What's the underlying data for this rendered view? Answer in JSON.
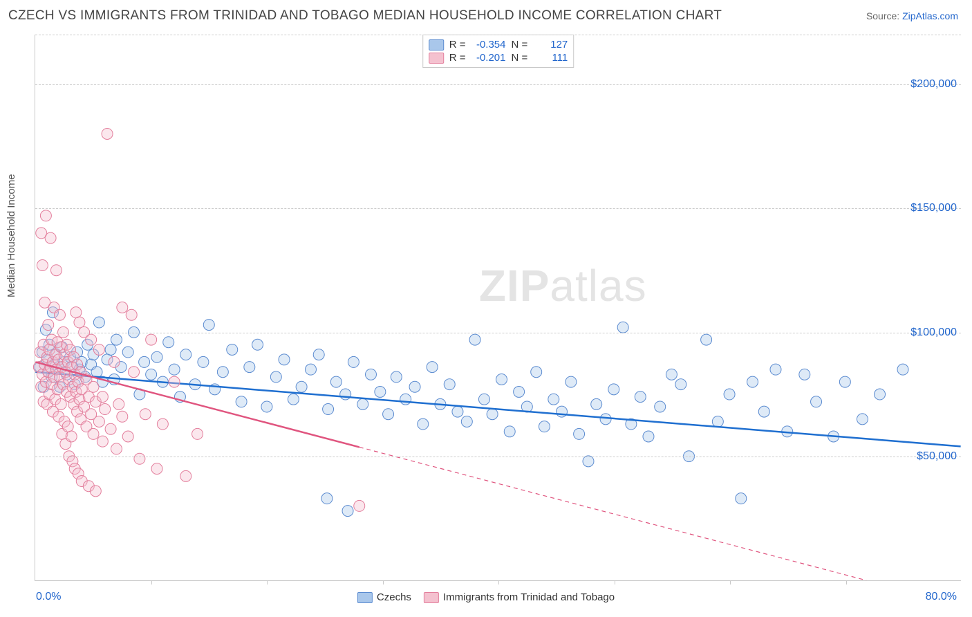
{
  "title": "CZECH VS IMMIGRANTS FROM TRINIDAD AND TOBAGO MEDIAN HOUSEHOLD INCOME CORRELATION CHART",
  "source_prefix": "Source: ",
  "source_link": "ZipAtlas.com",
  "y_axis_label": "Median Household Income",
  "watermark_a": "ZIP",
  "watermark_b": "atlas",
  "chart": {
    "type": "scatter",
    "background_color": "#ffffff",
    "grid_color": "#cccccc",
    "border_color": "#c8c8c8",
    "xlim": [
      0,
      80
    ],
    "ylim": [
      0,
      220000
    ],
    "x_ticks_minor": [
      10,
      20,
      30,
      40,
      50,
      60,
      70
    ],
    "x_tick_labels": {
      "min": "0.0%",
      "max": "80.0%"
    },
    "y_ticks": [
      50000,
      100000,
      150000,
      200000
    ],
    "y_tick_labels": [
      "$50,000",
      "$100,000",
      "$150,000",
      "$200,000"
    ],
    "y_tick_color": "#2266cc",
    "x_tick_color": "#2266cc",
    "marker_radius": 8,
    "marker_opacity": 0.38,
    "trend_line_width": 2.5,
    "series": [
      {
        "name": "Czechs",
        "color_fill": "#a9c7eb",
        "color_stroke": "#5b8bd0",
        "line_color": "#1f6fd0",
        "R": "-0.354",
        "N": "127",
        "trend_y_at_xmin": 84000,
        "trend_y_at_xmax": 54000,
        "trend_x_range": [
          0,
          80
        ],
        "points": [
          [
            0.4,
            86000
          ],
          [
            0.6,
            92000
          ],
          [
            0.7,
            78000
          ],
          [
            0.9,
            101000
          ],
          [
            1.0,
            89000
          ],
          [
            1.1,
            84000
          ],
          [
            1.2,
            95000
          ],
          [
            1.4,
            82000
          ],
          [
            1.5,
            108000
          ],
          [
            1.6,
            87000
          ],
          [
            1.8,
            91000
          ],
          [
            2.0,
            86000
          ],
          [
            2.1,
            78000
          ],
          [
            2.3,
            94000
          ],
          [
            2.5,
            88000
          ],
          [
            2.7,
            83000
          ],
          [
            3.0,
            90000
          ],
          [
            3.2,
            86000
          ],
          [
            3.4,
            79000
          ],
          [
            3.6,
            92000
          ],
          [
            3.8,
            85000
          ],
          [
            4.0,
            88000
          ],
          [
            4.3,
            82000
          ],
          [
            4.5,
            95000
          ],
          [
            4.8,
            87000
          ],
          [
            5.0,
            91000
          ],
          [
            5.3,
            84000
          ],
          [
            5.5,
            104000
          ],
          [
            5.8,
            80000
          ],
          [
            6.2,
            89000
          ],
          [
            6.5,
            93000
          ],
          [
            6.8,
            81000
          ],
          [
            7.0,
            97000
          ],
          [
            7.4,
            86000
          ],
          [
            8.0,
            92000
          ],
          [
            8.5,
            100000
          ],
          [
            9.0,
            75000
          ],
          [
            9.4,
            88000
          ],
          [
            10.0,
            83000
          ],
          [
            10.5,
            90000
          ],
          [
            11.0,
            80000
          ],
          [
            11.5,
            96000
          ],
          [
            12.0,
            85000
          ],
          [
            12.5,
            74000
          ],
          [
            13.0,
            91000
          ],
          [
            13.8,
            79000
          ],
          [
            14.5,
            88000
          ],
          [
            15.0,
            103000
          ],
          [
            15.5,
            77000
          ],
          [
            16.2,
            84000
          ],
          [
            17.0,
            93000
          ],
          [
            17.8,
            72000
          ],
          [
            18.5,
            86000
          ],
          [
            19.2,
            95000
          ],
          [
            20.0,
            70000
          ],
          [
            20.8,
            82000
          ],
          [
            21.5,
            89000
          ],
          [
            22.3,
            73000
          ],
          [
            23.0,
            78000
          ],
          [
            23.8,
            85000
          ],
          [
            24.5,
            91000
          ],
          [
            25.2,
            33000
          ],
          [
            25.3,
            69000
          ],
          [
            26.0,
            80000
          ],
          [
            26.8,
            75000
          ],
          [
            27.0,
            28000
          ],
          [
            27.5,
            88000
          ],
          [
            28.3,
            71000
          ],
          [
            29.0,
            83000
          ],
          [
            29.8,
            76000
          ],
          [
            30.5,
            67000
          ],
          [
            31.2,
            82000
          ],
          [
            32.0,
            73000
          ],
          [
            32.8,
            78000
          ],
          [
            33.5,
            63000
          ],
          [
            34.3,
            86000
          ],
          [
            35.0,
            71000
          ],
          [
            35.8,
            79000
          ],
          [
            36.5,
            68000
          ],
          [
            37.3,
            64000
          ],
          [
            38.0,
            97000
          ],
          [
            38.8,
            73000
          ],
          [
            39.5,
            67000
          ],
          [
            40.3,
            81000
          ],
          [
            41.0,
            60000
          ],
          [
            41.8,
            76000
          ],
          [
            42.5,
            70000
          ],
          [
            43.3,
            84000
          ],
          [
            44.0,
            62000
          ],
          [
            44.8,
            73000
          ],
          [
            45.5,
            68000
          ],
          [
            46.3,
            80000
          ],
          [
            47.0,
            59000
          ],
          [
            47.8,
            48000
          ],
          [
            48.5,
            71000
          ],
          [
            49.3,
            65000
          ],
          [
            50.0,
            77000
          ],
          [
            50.8,
            102000
          ],
          [
            51.5,
            63000
          ],
          [
            52.3,
            74000
          ],
          [
            53.0,
            58000
          ],
          [
            54.0,
            70000
          ],
          [
            55.0,
            83000
          ],
          [
            55.8,
            79000
          ],
          [
            56.5,
            50000
          ],
          [
            58.0,
            97000
          ],
          [
            59.0,
            64000
          ],
          [
            60.0,
            75000
          ],
          [
            61.0,
            33000
          ],
          [
            62.0,
            80000
          ],
          [
            63.0,
            68000
          ],
          [
            64.0,
            85000
          ],
          [
            65.0,
            60000
          ],
          [
            66.5,
            83000
          ],
          [
            67.5,
            72000
          ],
          [
            69.0,
            58000
          ],
          [
            70.0,
            80000
          ],
          [
            71.5,
            65000
          ],
          [
            73.0,
            75000
          ],
          [
            75.0,
            85000
          ]
        ]
      },
      {
        "name": "Immigrants from Trinidad and Tobago",
        "color_fill": "#f4c1cf",
        "color_stroke": "#e37e9c",
        "line_color": "#e0557f",
        "R": "-0.201",
        "N": "111",
        "trend_y_at_xmin": 88000,
        "trend_y_at_xmax": -10000,
        "trend_x_range": [
          0,
          28
        ],
        "points": [
          [
            0.3,
            86000
          ],
          [
            0.4,
            92000
          ],
          [
            0.5,
            78000
          ],
          [
            0.5,
            140000
          ],
          [
            0.6,
            83000
          ],
          [
            0.6,
            127000
          ],
          [
            0.7,
            95000
          ],
          [
            0.7,
            72000
          ],
          [
            0.8,
            112000
          ],
          [
            0.8,
            87000
          ],
          [
            0.9,
            80000
          ],
          [
            0.9,
            147000
          ],
          [
            1.0,
            90000
          ],
          [
            1.0,
            71000
          ],
          [
            1.1,
            84000
          ],
          [
            1.1,
            103000
          ],
          [
            1.2,
            93000
          ],
          [
            1.2,
            75000
          ],
          [
            1.3,
            86000
          ],
          [
            1.3,
            138000
          ],
          [
            1.4,
            79000
          ],
          [
            1.4,
            97000
          ],
          [
            1.5,
            88000
          ],
          [
            1.5,
            68000
          ],
          [
            1.6,
            82000
          ],
          [
            1.6,
            110000
          ],
          [
            1.7,
            91000
          ],
          [
            1.7,
            73000
          ],
          [
            1.8,
            85000
          ],
          [
            1.8,
            125000
          ],
          [
            1.9,
            77000
          ],
          [
            1.9,
            96000
          ],
          [
            2.0,
            89000
          ],
          [
            2.0,
            66000
          ],
          [
            2.1,
            82000
          ],
          [
            2.1,
            107000
          ],
          [
            2.2,
            94000
          ],
          [
            2.2,
            71000
          ],
          [
            2.3,
            86000
          ],
          [
            2.3,
            59000
          ],
          [
            2.4,
            79000
          ],
          [
            2.4,
            100000
          ],
          [
            2.5,
            91000
          ],
          [
            2.5,
            64000
          ],
          [
            2.6,
            84000
          ],
          [
            2.6,
            55000
          ],
          [
            2.7,
            76000
          ],
          [
            2.7,
            95000
          ],
          [
            2.8,
            88000
          ],
          [
            2.8,
            62000
          ],
          [
            2.9,
            81000
          ],
          [
            2.9,
            50000
          ],
          [
            3.0,
            74000
          ],
          [
            3.0,
            93000
          ],
          [
            3.1,
            86000
          ],
          [
            3.1,
            58000
          ],
          [
            3.2,
            78000
          ],
          [
            3.2,
            48000
          ],
          [
            3.3,
            71000
          ],
          [
            3.3,
            90000
          ],
          [
            3.4,
            83000
          ],
          [
            3.4,
            45000
          ],
          [
            3.5,
            76000
          ],
          [
            3.5,
            108000
          ],
          [
            3.6,
            68000
          ],
          [
            3.6,
            87000
          ],
          [
            3.7,
            80000
          ],
          [
            3.7,
            43000
          ],
          [
            3.8,
            73000
          ],
          [
            3.8,
            104000
          ],
          [
            3.9,
            65000
          ],
          [
            3.9,
            84000
          ],
          [
            4.0,
            77000
          ],
          [
            4.0,
            40000
          ],
          [
            4.2,
            70000
          ],
          [
            4.2,
            100000
          ],
          [
            4.4,
            62000
          ],
          [
            4.4,
            81000
          ],
          [
            4.6,
            74000
          ],
          [
            4.6,
            38000
          ],
          [
            4.8,
            67000
          ],
          [
            4.8,
            97000
          ],
          [
            5.0,
            59000
          ],
          [
            5.0,
            78000
          ],
          [
            5.2,
            72000
          ],
          [
            5.2,
            36000
          ],
          [
            5.5,
            64000
          ],
          [
            5.5,
            93000
          ],
          [
            5.8,
            56000
          ],
          [
            5.8,
            74000
          ],
          [
            6.0,
            69000
          ],
          [
            6.2,
            180000
          ],
          [
            6.5,
            61000
          ],
          [
            6.8,
            88000
          ],
          [
            7.0,
            53000
          ],
          [
            7.2,
            71000
          ],
          [
            7.5,
            110000
          ],
          [
            7.5,
            66000
          ],
          [
            8.0,
            58000
          ],
          [
            8.3,
            107000
          ],
          [
            8.5,
            84000
          ],
          [
            9.0,
            49000
          ],
          [
            9.5,
            67000
          ],
          [
            10.0,
            97000
          ],
          [
            10.5,
            45000
          ],
          [
            11.0,
            63000
          ],
          [
            12.0,
            80000
          ],
          [
            13.0,
            42000
          ],
          [
            14.0,
            59000
          ],
          [
            28.0,
            30000
          ]
        ]
      }
    ]
  },
  "legend_top_labels": {
    "R": "R =",
    "N": "N ="
  },
  "legend_bottom": {
    "a": "Czechs",
    "b": "Immigrants from Trinidad and Tobago"
  }
}
